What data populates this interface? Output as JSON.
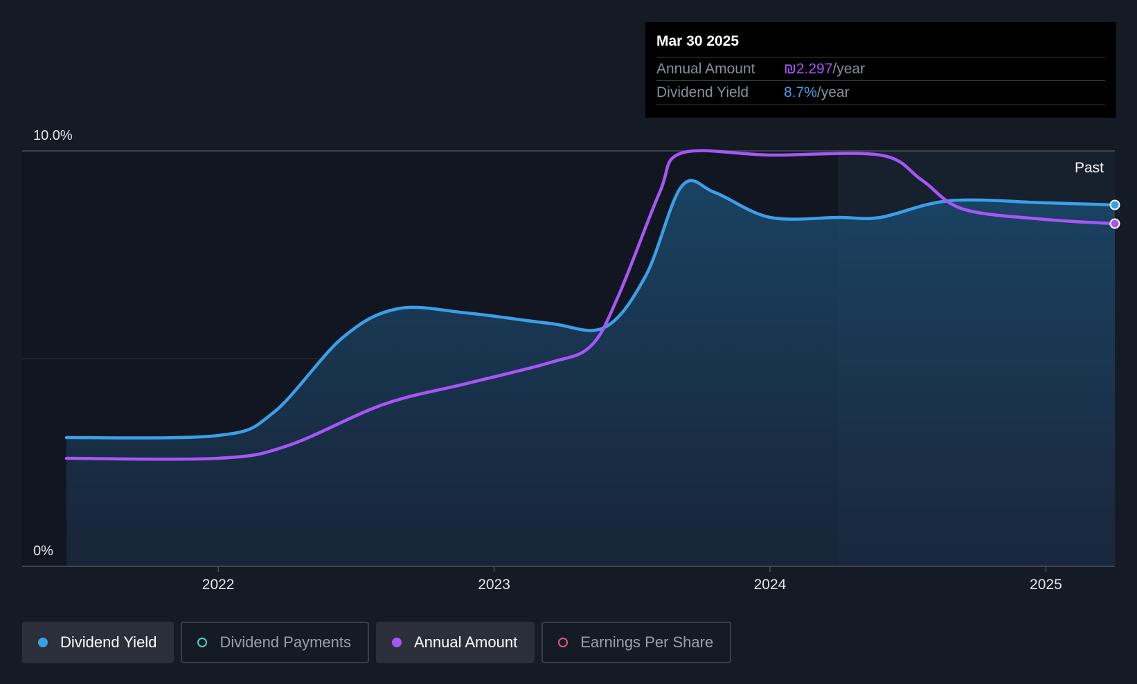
{
  "tooltip": {
    "date": "Mar 30 2025",
    "rows": [
      {
        "label": "Annual Amount",
        "value": "₪2.297",
        "suffix": "/year",
        "color": "#a855f7"
      },
      {
        "label": "Dividend Yield",
        "value": "8.7%",
        "suffix": "/year",
        "color": "#3b9fe8"
      }
    ]
  },
  "chart_data": {
    "type": "line",
    "y_tick_labels": [
      "10.0%",
      "0%"
    ],
    "x_tick_labels": [
      "2022",
      "2023",
      "2024",
      "2025"
    ],
    "past_label": "Past",
    "ylim": [
      0,
      10
    ],
    "x_domain": [
      2021.45,
      2025.25
    ],
    "past_region_start": 2024.25,
    "series": [
      {
        "name": "Dividend Yield",
        "color": "#3b9fe8",
        "filled": true,
        "points": [
          [
            2021.45,
            3.1
          ],
          [
            2022.0,
            3.15
          ],
          [
            2022.2,
            3.7
          ],
          [
            2022.45,
            5.5
          ],
          [
            2022.65,
            6.2
          ],
          [
            2022.9,
            6.1
          ],
          [
            2023.2,
            5.85
          ],
          [
            2023.4,
            5.75
          ],
          [
            2023.55,
            7.0
          ],
          [
            2023.68,
            9.15
          ],
          [
            2023.8,
            9.0
          ],
          [
            2024.0,
            8.4
          ],
          [
            2024.25,
            8.4
          ],
          [
            2024.4,
            8.4
          ],
          [
            2024.65,
            8.8
          ],
          [
            2025.0,
            8.75
          ],
          [
            2025.25,
            8.7
          ]
        ]
      },
      {
        "name": "Annual Amount",
        "color": "#a855f7",
        "filled": false,
        "points": [
          [
            2021.45,
            2.6
          ],
          [
            2022.0,
            2.6
          ],
          [
            2022.25,
            2.9
          ],
          [
            2022.6,
            3.9
          ],
          [
            2022.9,
            4.4
          ],
          [
            2023.2,
            4.9
          ],
          [
            2023.35,
            5.3
          ],
          [
            2023.45,
            6.5
          ],
          [
            2023.6,
            9.0
          ],
          [
            2023.68,
            9.95
          ],
          [
            2024.0,
            9.9
          ],
          [
            2024.4,
            9.9
          ],
          [
            2024.55,
            9.3
          ],
          [
            2024.7,
            8.6
          ],
          [
            2025.0,
            8.35
          ],
          [
            2025.25,
            8.25
          ]
        ]
      }
    ]
  },
  "legend": [
    {
      "label": "Dividend Yield",
      "color": "#3b9fe8",
      "active": true
    },
    {
      "label": "Dividend Payments",
      "color": "#4fd1c5",
      "active": false
    },
    {
      "label": "Annual Amount",
      "color": "#a855f7",
      "active": true
    },
    {
      "label": "Earnings Per Share",
      "color": "#e0577d",
      "active": false
    }
  ]
}
